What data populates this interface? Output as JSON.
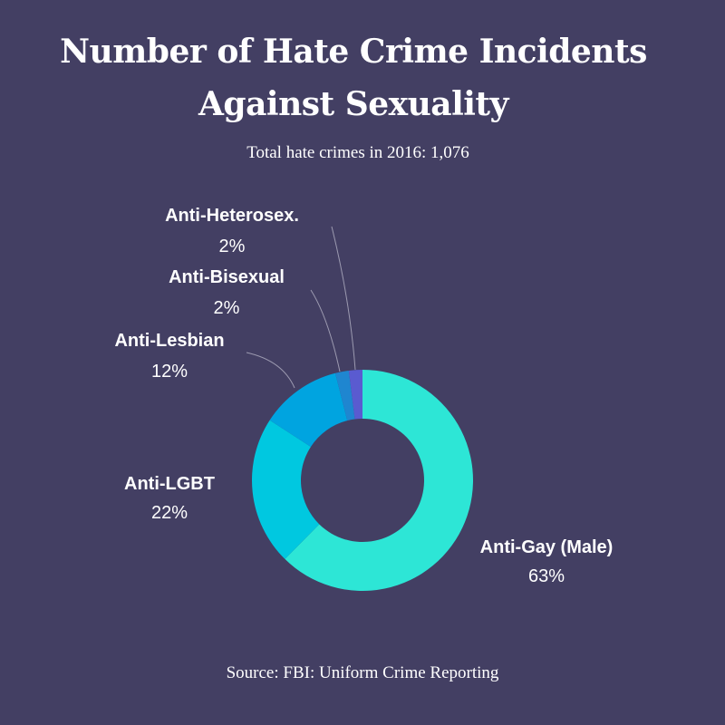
{
  "header": {
    "title_line1": "Number of Hate Crime Incidents",
    "title_line2": "Against Sexuality",
    "subtitle": "Total hate crimes in 2016: 1,076"
  },
  "footer": {
    "source": "Source: FBI: Uniform Crime Reporting"
  },
  "colors": {
    "background": "#433f63",
    "text": "#ffffff",
    "leader_line": "#9c9ab0"
  },
  "chart_data": {
    "type": "pie",
    "donut": true,
    "slices": [
      {
        "label": "Anti-Gay (Male)",
        "value": 63,
        "value_label": "63%",
        "color": "#2de6d6"
      },
      {
        "label": "Anti-LGBT",
        "value": 22,
        "value_label": "22%",
        "color": "#00c8e0"
      },
      {
        "label": "Anti-Lesbian",
        "value": 12,
        "value_label": "12%",
        "color": "#00a4e0"
      },
      {
        "label": "Anti-Bisexual",
        "value": 2,
        "value_label": "2%",
        "color": "#1f86d0"
      },
      {
        "label": "Anti-Heterosex.",
        "value": 2,
        "value_label": "2%",
        "color": "#5a5bd0"
      }
    ]
  }
}
